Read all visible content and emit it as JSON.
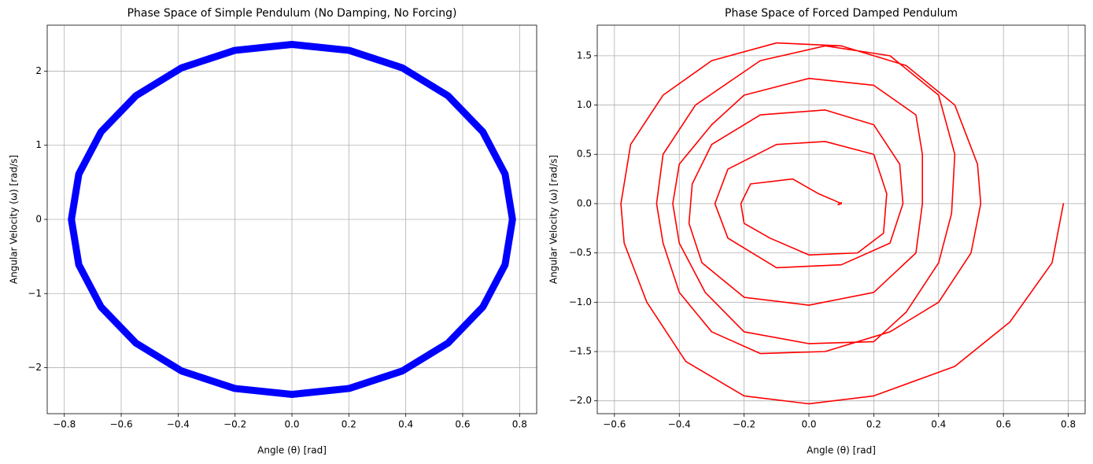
{
  "chart_data": [
    {
      "type": "line",
      "title": "Phase Space of Simple Pendulum (No Damping, No Forcing)",
      "x_label": "Angle (θ) [rad]",
      "y_label": "Angular Velocity (ω) [rad/s]",
      "xlim": [
        -0.86,
        0.86
      ],
      "ylim": [
        -2.62,
        2.62
      ],
      "grid": true,
      "xticks": [
        {
          "value": -0.8,
          "label": "−0.8"
        },
        {
          "value": -0.6,
          "label": "−0.6"
        },
        {
          "value": -0.4,
          "label": "−0.4"
        },
        {
          "value": -0.2,
          "label": "−0.2"
        },
        {
          "value": 0,
          "label": "0.0"
        },
        0.2,
        0.4,
        0.6,
        0.8
      ],
      "yticks": [
        {
          "value": -2,
          "label": "−2"
        },
        {
          "value": -1,
          "label": "−1"
        },
        0,
        1,
        2
      ],
      "series": [
        {
          "color": "#0000ff",
          "x": [
            0.775,
            0.749,
            0.671,
            0.548,
            0.388,
            0.201,
            0,
            -0.201,
            -0.388,
            -0.548,
            -0.671,
            -0.749,
            -0.775,
            -0.749,
            -0.671,
            -0.548,
            -0.388,
            -0.201,
            0,
            0.201,
            0.388,
            0.548,
            0.671,
            0.749,
            0.775
          ],
          "y": [
            0,
            -0.611,
            -1.18,
            -1.669,
            -2.044,
            -2.28,
            -2.36,
            -2.28,
            -2.044,
            -1.669,
            -1.18,
            -0.611,
            0,
            0.611,
            1.18,
            1.669,
            2.044,
            2.28,
            2.36,
            2.28,
            2.044,
            1.669,
            1.18,
            0.611,
            0
          ]
        }
      ]
    },
    {
      "type": "line",
      "title": "Phase Space of Forced Damped Pendulum",
      "x_label": "Angle (θ) [rad]",
      "y_label": "Angular Velocity (ω) [rad/s]",
      "xlim": [
        -0.653,
        0.852
      ],
      "ylim": [
        -2.13,
        1.81
      ],
      "grid": true,
      "xticks": [
        {
          "value": -0.6,
          "label": "−0.6"
        },
        {
          "value": -0.4,
          "label": "−0.4"
        },
        {
          "value": -0.2,
          "label": "−0.2"
        },
        {
          "value": 0,
          "label": "0.0"
        },
        0.2,
        0.4,
        0.6,
        0.8
      ],
      "yticks": [
        {
          "value": -2,
          "label": "−2.0"
        },
        {
          "value": -1.5,
          "label": "−1.5"
        },
        {
          "value": -1,
          "label": "−1.0"
        },
        {
          "value": -0.5,
          "label": "−0.5"
        },
        {
          "value": 0,
          "label": "0.0"
        },
        0.5,
        {
          "value": 1,
          "label": "1.0"
        },
        1.5
      ],
      "series": [
        {
          "color": "#ff0000",
          "x": [
            0.785,
            0.75,
            0.62,
            0.45,
            0.2,
            0.0,
            -0.2,
            -0.38,
            -0.5,
            -0.57,
            -0.58,
            -0.55,
            -0.45,
            -0.3,
            -0.1,
            0.1,
            0.3,
            0.45,
            0.52,
            0.53,
            0.5,
            0.4,
            0.25,
            0.05,
            -0.15,
            -0.3,
            -0.4,
            -0.45,
            -0.47,
            -0.45,
            -0.35,
            -0.15,
            0.05,
            0.25,
            0.4,
            0.45,
            0.44,
            0.4,
            0.3,
            0.2,
            0.0,
            -0.2,
            -0.32,
            -0.4,
            -0.42,
            -0.4,
            -0.3,
            -0.2,
            0.0,
            0.2,
            0.33,
            0.35,
            0.35,
            0.33,
            0.2,
            0.0,
            -0.2,
            -0.33,
            -0.37,
            -0.36,
            -0.3,
            -0.15,
            0.05,
            0.2,
            0.28,
            0.29,
            0.25,
            0.1,
            -0.1,
            -0.25,
            -0.29,
            -0.25,
            -0.1,
            0.05,
            0.2,
            0.24,
            0.23,
            0.15,
            0.0,
            -0.12,
            -0.2,
            -0.21,
            -0.18,
            -0.05,
            0.03,
            0.08,
            0.1,
            0.09,
            0.1
          ],
          "y": [
            0,
            -0.6,
            -1.2,
            -1.65,
            -1.95,
            -2.03,
            -1.95,
            -1.6,
            -1.0,
            -0.4,
            0,
            0.6,
            1.1,
            1.45,
            1.63,
            1.6,
            1.4,
            1.0,
            0.4,
            0,
            -0.5,
            -1.0,
            -1.3,
            -1.5,
            -1.52,
            -1.3,
            -0.9,
            -0.4,
            0,
            0.5,
            1.0,
            1.45,
            1.6,
            1.5,
            1.1,
            0.5,
            -0.1,
            -0.6,
            -1.1,
            -1.4,
            -1.42,
            -1.3,
            -0.9,
            -0.4,
            0,
            0.4,
            0.8,
            1.1,
            1.27,
            1.2,
            0.9,
            0.5,
            0,
            -0.5,
            -0.9,
            -1.03,
            -0.95,
            -0.6,
            -0.2,
            0.2,
            0.6,
            0.9,
            0.95,
            0.8,
            0.4,
            0,
            -0.4,
            -0.62,
            -0.65,
            -0.35,
            0,
            0.35,
            0.6,
            0.63,
            0.5,
            0.1,
            -0.3,
            -0.5,
            -0.52,
            -0.35,
            -0.2,
            0,
            0.2,
            0.25,
            0.1,
            0.03,
            0,
            -0.01,
            0.01
          ]
        }
      ]
    }
  ]
}
